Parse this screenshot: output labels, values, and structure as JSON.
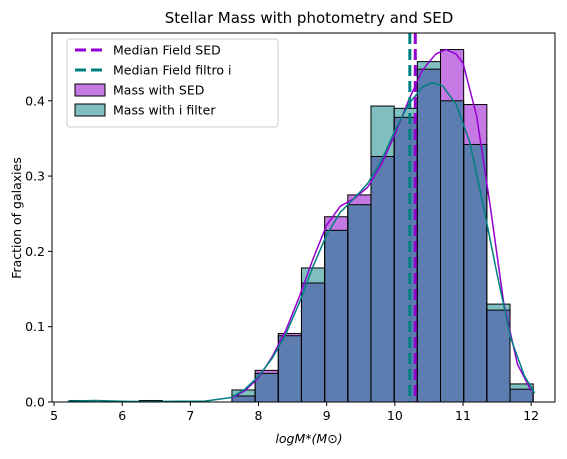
{
  "chart_data": {
    "type": "histogram",
    "title": "Stellar Mass with photometry and SED",
    "xlabel": "logM*(M⊙)",
    "ylabel": "Fraction of galaxies",
    "xlim": [
      4.97,
      12.35
    ],
    "ylim": [
      0,
      0.49
    ],
    "xticks": [
      "5",
      "6",
      "7",
      "8",
      "9",
      "10",
      "11",
      "12"
    ],
    "yticks": [
      "0.0",
      "0.1",
      "0.2",
      "0.3",
      "0.4"
    ],
    "bin_edges": [
      5.23,
      5.57,
      5.91,
      6.25,
      6.59,
      6.93,
      7.27,
      7.61,
      7.95,
      8.29,
      8.63,
      8.97,
      9.31,
      9.65,
      9.99,
      10.33,
      10.67,
      11.01,
      11.35,
      11.69,
      12.03
    ],
    "series": [
      {
        "name": "Mass with SED",
        "color": "#9400d3",
        "fill": "#c57ae3",
        "values": [
          0,
          0,
          0,
          0,
          0,
          0,
          0,
          0.008,
          0.042,
          0.091,
          0.158,
          0.246,
          0.275,
          0.326,
          0.378,
          0.442,
          0.468,
          0.395,
          0.122,
          0.017
        ]
      },
      {
        "name": "Mass with i filter",
        "color": "#008080",
        "fill": "#7fbfbf",
        "values": [
          0.002,
          0,
          0,
          0.002,
          0,
          0,
          0,
          0.016,
          0.038,
          0.088,
          0.178,
          0.228,
          0.262,
          0.393,
          0.39,
          0.452,
          0.4,
          0.342,
          0.13,
          0.024
        ]
      }
    ],
    "kde": [
      {
        "name": "Mass with SED",
        "color": "#9400d3",
        "x": [
          7.6,
          7.8,
          8.0,
          8.2,
          8.4,
          8.6,
          8.8,
          9.0,
          9.2,
          9.4,
          9.6,
          9.8,
          10.0,
          10.2,
          10.4,
          10.6,
          10.75,
          10.9,
          11.0,
          11.2,
          11.4,
          11.6,
          11.8,
          12.0
        ],
        "y": [
          0.005,
          0.015,
          0.032,
          0.06,
          0.095,
          0.14,
          0.19,
          0.235,
          0.26,
          0.27,
          0.285,
          0.315,
          0.355,
          0.4,
          0.44,
          0.462,
          0.468,
          0.462,
          0.45,
          0.38,
          0.26,
          0.13,
          0.05,
          0.015
        ]
      },
      {
        "name": "Mass with i filter",
        "color": "#008080",
        "x": [
          5.2,
          5.6,
          6.0,
          6.4,
          6.8,
          7.2,
          7.6,
          7.8,
          8.0,
          8.2,
          8.4,
          8.6,
          8.8,
          9.0,
          9.2,
          9.4,
          9.6,
          9.8,
          10.0,
          10.2,
          10.4,
          10.55,
          10.7,
          10.9,
          11.1,
          11.3,
          11.5,
          11.7,
          11.9,
          12.05
        ],
        "y": [
          0.001,
          0.002,
          0.001,
          0.0005,
          0.001,
          0.001,
          0.006,
          0.017,
          0.034,
          0.058,
          0.09,
          0.132,
          0.18,
          0.222,
          0.252,
          0.27,
          0.29,
          0.32,
          0.36,
          0.395,
          0.418,
          0.424,
          0.42,
          0.395,
          0.345,
          0.26,
          0.17,
          0.085,
          0.035,
          0.012
        ]
      }
    ],
    "medians": [
      {
        "name": "Median Field SED",
        "x": 10.3,
        "color": "#9400d3"
      },
      {
        "name": "Median Field filtro i",
        "x": 10.22,
        "color": "#008080"
      }
    ],
    "legend": {
      "position": "top-left",
      "entries": [
        {
          "label": "Median Field SED",
          "kind": "dashed-line",
          "color": "#9400d3"
        },
        {
          "label": "Median Field filtro i",
          "kind": "dashed-line",
          "color": "#008080"
        },
        {
          "label": "Mass with SED",
          "kind": "patch",
          "color": "#c57ae3"
        },
        {
          "label": "Mass with i filter",
          "kind": "patch",
          "color": "#7fbfbf"
        }
      ]
    },
    "grid": false
  }
}
